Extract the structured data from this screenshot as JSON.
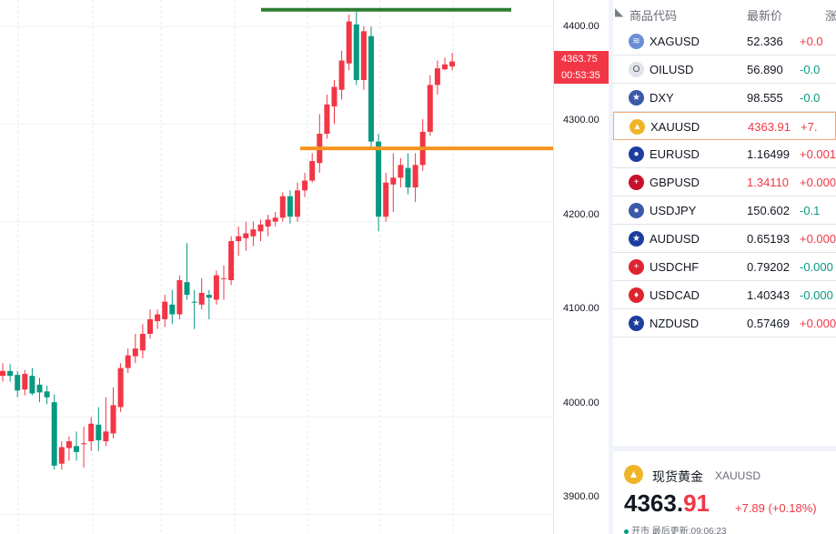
{
  "chart": {
    "price_axis_ticks": [
      "4400.00",
      "4300.00",
      "4200.00",
      "4100.00",
      "4000.00",
      "3900.00"
    ],
    "current_price": "4363.75",
    "countdown": "00:53:35",
    "resistance_level": 4417,
    "support_level": 4275,
    "colors": {
      "up": "#f23645",
      "down": "#089981",
      "resistance_line": "#2e7d32",
      "support_line": "#f7931e"
    }
  },
  "chart_data": {
    "type": "candlestick",
    "ylim": [
      3880,
      4427
    ],
    "grid": true,
    "candles": [
      {
        "o": 4042,
        "h": 4055,
        "l": 4036,
        "c": 4047
      },
      {
        "o": 4047,
        "h": 4054,
        "l": 4036,
        "c": 4042
      },
      {
        "o": 4043,
        "h": 4047,
        "l": 4020,
        "c": 4027
      },
      {
        "o": 4028,
        "h": 4048,
        "l": 4022,
        "c": 4044
      },
      {
        "o": 4042,
        "h": 4050,
        "l": 4022,
        "c": 4024
      },
      {
        "o": 4033,
        "h": 4040,
        "l": 4015,
        "c": 4025
      },
      {
        "o": 4026,
        "h": 4032,
        "l": 4013,
        "c": 4020
      },
      {
        "o": 4015,
        "h": 4023,
        "l": 3946,
        "c": 3950
      },
      {
        "o": 3952,
        "h": 3975,
        "l": 3946,
        "c": 3969
      },
      {
        "o": 3968,
        "h": 3980,
        "l": 3955,
        "c": 3975
      },
      {
        "o": 3970,
        "h": 3985,
        "l": 3955,
        "c": 3964
      },
      {
        "o": 3972,
        "h": 3990,
        "l": 3948,
        "c": 3973
      },
      {
        "o": 3975,
        "h": 4000,
        "l": 3965,
        "c": 3993
      },
      {
        "o": 3992,
        "h": 4010,
        "l": 3965,
        "c": 3976
      },
      {
        "o": 3975,
        "h": 4020,
        "l": 3970,
        "c": 3985
      },
      {
        "o": 3983,
        "h": 4030,
        "l": 3978,
        "c": 4012
      },
      {
        "o": 4010,
        "h": 4055,
        "l": 4005,
        "c": 4050
      },
      {
        "o": 4050,
        "h": 4070,
        "l": 4045,
        "c": 4063
      },
      {
        "o": 4062,
        "h": 4085,
        "l": 4055,
        "c": 4070
      },
      {
        "o": 4068,
        "h": 4095,
        "l": 4060,
        "c": 4085
      },
      {
        "o": 4085,
        "h": 4110,
        "l": 4080,
        "c": 4100
      },
      {
        "o": 4098,
        "h": 4110,
        "l": 4090,
        "c": 4105
      },
      {
        "o": 4100,
        "h": 4125,
        "l": 4092,
        "c": 4118
      },
      {
        "o": 4115,
        "h": 4130,
        "l": 4095,
        "c": 4105
      },
      {
        "o": 4105,
        "h": 4145,
        "l": 4100,
        "c": 4140
      },
      {
        "o": 4138,
        "h": 4178,
        "l": 4120,
        "c": 4125
      },
      {
        "o": 4118,
        "h": 4130,
        "l": 4090,
        "c": 4117
      },
      {
        "o": 4115,
        "h": 4142,
        "l": 4110,
        "c": 4127
      },
      {
        "o": 4125,
        "h": 4130,
        "l": 4100,
        "c": 4122
      },
      {
        "o": 4120,
        "h": 4150,
        "l": 4115,
        "c": 4145
      },
      {
        "o": 4142,
        "h": 4155,
        "l": 4120,
        "c": 4142
      },
      {
        "o": 4140,
        "h": 4185,
        "l": 4135,
        "c": 4180
      },
      {
        "o": 4180,
        "h": 4195,
        "l": 4165,
        "c": 4185
      },
      {
        "o": 4183,
        "h": 4200,
        "l": 4170,
        "c": 4188
      },
      {
        "o": 4185,
        "h": 4200,
        "l": 4175,
        "c": 4192
      },
      {
        "o": 4190,
        "h": 4202,
        "l": 4180,
        "c": 4197
      },
      {
        "o": 4195,
        "h": 4207,
        "l": 4185,
        "c": 4202
      },
      {
        "o": 4200,
        "h": 4210,
        "l": 4195,
        "c": 4204
      },
      {
        "o": 4204,
        "h": 4230,
        "l": 4200,
        "c": 4226
      },
      {
        "o": 4226,
        "h": 4232,
        "l": 4198,
        "c": 4205
      },
      {
        "o": 4205,
        "h": 4240,
        "l": 4200,
        "c": 4232
      },
      {
        "o": 4232,
        "h": 4250,
        "l": 4225,
        "c": 4242
      },
      {
        "o": 4242,
        "h": 4270,
        "l": 4240,
        "c": 4262
      },
      {
        "o": 4260,
        "h": 4310,
        "l": 4250,
        "c": 4290
      },
      {
        "o": 4290,
        "h": 4330,
        "l": 4285,
        "c": 4320
      },
      {
        "o": 4318,
        "h": 4345,
        "l": 4300,
        "c": 4338
      },
      {
        "o": 4335,
        "h": 4375,
        "l": 4325,
        "c": 4365
      },
      {
        "o": 4362,
        "h": 4412,
        "l": 4355,
        "c": 4405
      },
      {
        "o": 4402,
        "h": 4415,
        "l": 4340,
        "c": 4345
      },
      {
        "o": 4345,
        "h": 4400,
        "l": 4335,
        "c": 4395
      },
      {
        "o": 4390,
        "h": 4400,
        "l": 4275,
        "c": 4282
      },
      {
        "o": 4282,
        "h": 4290,
        "l": 4190,
        "c": 4205
      },
      {
        "o": 4205,
        "h": 4250,
        "l": 4200,
        "c": 4240
      },
      {
        "o": 4238,
        "h": 4270,
        "l": 4210,
        "c": 4245
      },
      {
        "o": 4245,
        "h": 4265,
        "l": 4235,
        "c": 4258
      },
      {
        "o": 4255,
        "h": 4270,
        "l": 4228,
        "c": 4235
      },
      {
        "o": 4235,
        "h": 4270,
        "l": 4220,
        "c": 4258
      },
      {
        "o": 4258,
        "h": 4305,
        "l": 4252,
        "c": 4292
      },
      {
        "o": 4292,
        "h": 4350,
        "l": 4288,
        "c": 4340
      },
      {
        "o": 4340,
        "h": 4365,
        "l": 4330,
        "c": 4357
      },
      {
        "o": 4356,
        "h": 4368,
        "l": 4355,
        "c": 4361
      },
      {
        "o": 4359,
        "h": 4373,
        "l": 4355,
        "c": 4364
      }
    ]
  },
  "watchlist": {
    "header": {
      "symbol": "商品代码",
      "last": "最新价",
      "change": "涨"
    },
    "rows": [
      {
        "symbol": "XAGUSD",
        "last": "52.336",
        "change": "+0.0",
        "dir": "up",
        "icon_name": "silver-icon",
        "icon_color": "#6b8fd6",
        "icon_glyph": "≋"
      },
      {
        "symbol": "OILUSD",
        "last": "56.890",
        "change": "-0.0",
        "dir": "down",
        "icon_name": "oil-icon",
        "icon_color": "#e0e3eb",
        "icon_glyph": "O"
      },
      {
        "symbol": "DXY",
        "last": "98.555",
        "change": "-0.0",
        "dir": "down",
        "icon_name": "us-flag-icon",
        "icon_color": "#3c5aa8",
        "icon_glyph": "★"
      },
      {
        "symbol": "XAUUSD",
        "last": "4363.91",
        "change": "+7.",
        "dir": "up",
        "icon_name": "gold-icon",
        "icon_color": "#f0b429",
        "icon_glyph": "▲"
      },
      {
        "symbol": "EURUSD",
        "last": "1.16499",
        "change": "+0.001",
        "dir": "up",
        "icon_name": "eu-flag-icon",
        "icon_color": "#1d3e9e",
        "icon_glyph": "●"
      },
      {
        "symbol": "GBPUSD",
        "last": "1.34110",
        "change": "+0.000",
        "dir": "up",
        "icon_name": "uk-flag-icon",
        "icon_color": "#c8102e",
        "icon_glyph": "+"
      },
      {
        "symbol": "USDJPY",
        "last": "150.602",
        "change": "-0.1",
        "dir": "down",
        "icon_name": "us-flag-icon",
        "icon_color": "#3c5aa8",
        "icon_glyph": "●"
      },
      {
        "symbol": "AUDUSD",
        "last": "0.65193",
        "change": "+0.000",
        "dir": "up",
        "icon_name": "au-flag-icon",
        "icon_color": "#1d3e9e",
        "icon_glyph": "★"
      },
      {
        "symbol": "USDCHF",
        "last": "0.79202",
        "change": "-0.000",
        "dir": "down",
        "icon_name": "ch-flag-icon",
        "icon_color": "#e0242e",
        "icon_glyph": "+"
      },
      {
        "symbol": "USDCAD",
        "last": "1.40343",
        "change": "-0.000",
        "dir": "down",
        "icon_name": "ca-flag-icon",
        "icon_color": "#e0242e",
        "icon_glyph": "♦"
      },
      {
        "symbol": "NZDUSD",
        "last": "0.57469",
        "change": "+0.000",
        "dir": "up",
        "icon_name": "nz-flag-icon",
        "icon_color": "#1d3e9e",
        "icon_glyph": "★"
      }
    ]
  },
  "detail": {
    "name": "现货黄金",
    "ticker": "XAUUSD",
    "price_int": "4363.",
    "price_frac": "91",
    "change": "+7.89 (+0.18%)",
    "status": "开市",
    "updated": "最后更新:09:06:23"
  }
}
